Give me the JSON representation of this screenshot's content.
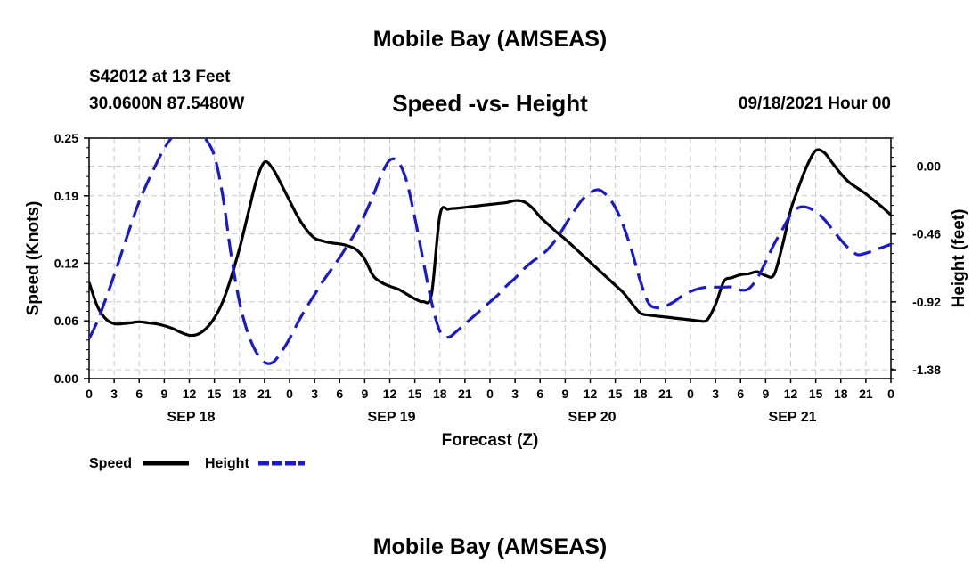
{
  "header": {
    "title": "Mobile Bay (AMSEAS)",
    "station": "S42012 at 13 Feet",
    "coords": "30.0600N  87.5480W",
    "chart_title": "Speed -vs- Height",
    "datetime": "09/18/2021 Hour 00"
  },
  "footer": {
    "title": "Mobile Bay (AMSEAS)"
  },
  "chart_data": {
    "type": "line",
    "title": "Speed -vs- Height",
    "xlabel": "Forecast (Z)",
    "ylabel_left": "Speed (Knots)",
    "ylabel_right": "Height (feet)",
    "x_range_hours": [
      0,
      96
    ],
    "x_tick_step_hours": 3,
    "x_tick_labels": [
      "0",
      "3",
      "6",
      "9",
      "12",
      "15",
      "18",
      "21",
      "0",
      "3",
      "6",
      "9",
      "12",
      "15",
      "18",
      "21",
      "0",
      "3",
      "6",
      "9",
      "12",
      "15",
      "18",
      "21",
      "0",
      "3",
      "6",
      "9",
      "12",
      "15",
      "18",
      "21",
      "0"
    ],
    "day_labels": [
      {
        "label": "SEP 18",
        "hour": 12
      },
      {
        "label": "SEP 19",
        "hour": 36
      },
      {
        "label": "SEP 20",
        "hour": 60
      },
      {
        "label": "SEP 21",
        "hour": 84
      }
    ],
    "left_axis": {
      "ylim": [
        0.0,
        0.25
      ],
      "ticks": [
        0.25,
        0.19,
        0.12,
        0.06,
        0.0
      ],
      "tick_labels": [
        "0.25",
        "0.19",
        "0.12",
        "0.06",
        "0.00"
      ]
    },
    "right_axis": {
      "ylim": [
        -1.44,
        0.19
      ],
      "ticks": [
        0.0,
        -0.46,
        -0.92,
        -1.38
      ],
      "tick_labels": [
        "0.00",
        "-0.46",
        "-0.92",
        "-1.38"
      ]
    },
    "grid": true,
    "legend": {
      "position": "bottom-left",
      "entries": [
        "Speed",
        "Height"
      ]
    },
    "colors": {
      "speed": "#000000",
      "height": "#1a1acc"
    },
    "series": [
      {
        "name": "Speed",
        "axis": "left",
        "style": "solid",
        "x": [
          0,
          1,
          2,
          3,
          4,
          5,
          6,
          7,
          8,
          9,
          10,
          11,
          12,
          13,
          14,
          15,
          16,
          17,
          18,
          19,
          20,
          21,
          22,
          23,
          24,
          25,
          26,
          27,
          28,
          29,
          30,
          31,
          32,
          33,
          34,
          35,
          36,
          37,
          38,
          39,
          40,
          41,
          42,
          43,
          44,
          45,
          46,
          47,
          48,
          49,
          50,
          51,
          52,
          53,
          54,
          55,
          56,
          57,
          58,
          59,
          60,
          61,
          62,
          63,
          64,
          65,
          66,
          67,
          68,
          69,
          70,
          71,
          72,
          73,
          74,
          75,
          76,
          77,
          78,
          79,
          80,
          81,
          82,
          83,
          84,
          85,
          86,
          87,
          88,
          89,
          90,
          91,
          92,
          93,
          94,
          95,
          96
        ],
        "values": [
          0.1,
          0.075,
          0.062,
          0.057,
          0.057,
          0.058,
          0.059,
          0.058,
          0.057,
          0.055,
          0.052,
          0.048,
          0.045,
          0.046,
          0.052,
          0.063,
          0.08,
          0.105,
          0.135,
          0.17,
          0.205,
          0.225,
          0.218,
          0.202,
          0.185,
          0.168,
          0.155,
          0.146,
          0.143,
          0.141,
          0.14,
          0.138,
          0.134,
          0.124,
          0.107,
          0.1,
          0.096,
          0.093,
          0.088,
          0.083,
          0.08,
          0.088,
          0.17,
          0.176,
          0.177,
          0.178,
          0.179,
          0.18,
          0.181,
          0.182,
          0.183,
          0.185,
          0.184,
          0.178,
          0.168,
          0.16,
          0.152,
          0.145,
          0.137,
          0.129,
          0.121,
          0.113,
          0.105,
          0.097,
          0.089,
          0.078,
          0.068,
          0.066,
          0.065,
          0.064,
          0.063,
          0.062,
          0.061,
          0.06,
          0.061,
          0.077,
          0.101,
          0.105,
          0.108,
          0.109,
          0.111,
          0.107,
          0.108,
          0.138,
          0.175,
          0.2,
          0.222,
          0.237,
          0.235,
          0.224,
          0.213,
          0.204,
          0.198,
          0.192,
          0.185,
          0.178,
          0.17
        ]
      },
      {
        "name": "Height",
        "axis": "right",
        "style": "dashed",
        "x": [
          0,
          1,
          2,
          3,
          4,
          5,
          6,
          7,
          8,
          9,
          10,
          11,
          12,
          13,
          14,
          15,
          16,
          17,
          18,
          19,
          20,
          21,
          22,
          23,
          24,
          25,
          26,
          27,
          28,
          29,
          30,
          31,
          32,
          33,
          34,
          35,
          36,
          37,
          38,
          39,
          40,
          41,
          42,
          43,
          44,
          45,
          46,
          47,
          48,
          49,
          50,
          51,
          52,
          53,
          54,
          55,
          56,
          57,
          58,
          59,
          60,
          61,
          62,
          63,
          64,
          65,
          66,
          67,
          68,
          69,
          70,
          71,
          72,
          73,
          74,
          75,
          76,
          77,
          78,
          79,
          80,
          81,
          82,
          83,
          84,
          85,
          86,
          87,
          88,
          89,
          90,
          91,
          92,
          93,
          94,
          95,
          96
        ],
        "values": [
          -1.17,
          -1.05,
          -0.9,
          -0.74,
          -0.57,
          -0.4,
          -0.24,
          -0.11,
          0.01,
          0.12,
          0.2,
          0.24,
          0.25,
          0.24,
          0.18,
          0.07,
          -0.2,
          -0.6,
          -0.92,
          -1.13,
          -1.26,
          -1.33,
          -1.33,
          -1.26,
          -1.17,
          -1.06,
          -0.96,
          -0.87,
          -0.78,
          -0.7,
          -0.62,
          -0.53,
          -0.44,
          -0.33,
          -0.2,
          -0.06,
          0.04,
          0.03,
          -0.1,
          -0.35,
          -0.64,
          -0.92,
          -1.12,
          -1.16,
          -1.12,
          -1.07,
          -1.02,
          -0.97,
          -0.92,
          -0.87,
          -0.81,
          -0.76,
          -0.7,
          -0.65,
          -0.61,
          -0.56,
          -0.49,
          -0.4,
          -0.31,
          -0.23,
          -0.18,
          -0.16,
          -0.2,
          -0.28,
          -0.41,
          -0.58,
          -0.78,
          -0.93,
          -0.96,
          -0.95,
          -0.92,
          -0.88,
          -0.85,
          -0.83,
          -0.82,
          -0.82,
          -0.82,
          -0.82,
          -0.84,
          -0.83,
          -0.76,
          -0.65,
          -0.53,
          -0.43,
          -0.33,
          -0.28,
          -0.28,
          -0.31,
          -0.36,
          -0.43,
          -0.5,
          -0.56,
          -0.6,
          -0.59,
          -0.57,
          -0.55,
          -0.53
        ]
      }
    ]
  }
}
